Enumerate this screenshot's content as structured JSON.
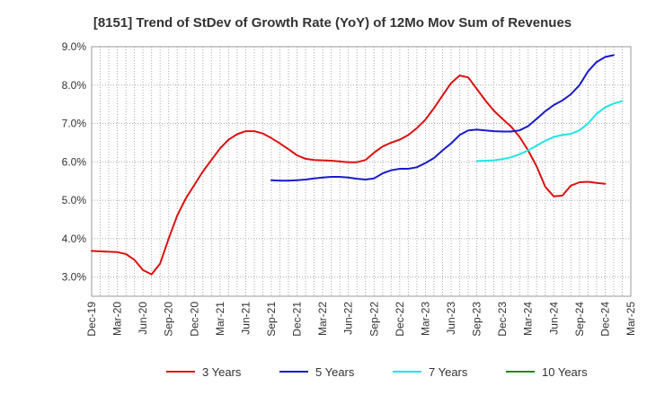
{
  "chart_data": {
    "type": "line",
    "title": "[8151]  Trend of StDev of Growth Rate (YoY) of 12Mo Mov Sum of Revenues",
    "xlabel": "",
    "ylabel": "",
    "ylim": [
      2.5,
      9.0
    ],
    "yticks": [
      3.0,
      4.0,
      5.0,
      6.0,
      7.0,
      8.0,
      9.0
    ],
    "ytick_labels": [
      "3.0%",
      "4.0%",
      "5.0%",
      "6.0%",
      "7.0%",
      "8.0%",
      "9.0%"
    ],
    "xtick_labels": [
      "Dec-19",
      "Mar-20",
      "Jun-20",
      "Sep-20",
      "Dec-20",
      "Mar-21",
      "Jun-21",
      "Sep-21",
      "Dec-21",
      "Mar-22",
      "Jun-22",
      "Sep-22",
      "Dec-22",
      "Mar-23",
      "Jun-23",
      "Sep-23",
      "Dec-23",
      "Mar-24",
      "Jun-24",
      "Sep-24",
      "Dec-24",
      "Mar-25"
    ],
    "grid": true,
    "legend_position": "bottom",
    "series": [
      {
        "name": "3 Years",
        "color": "#dd1111",
        "start_index": 0,
        "values": [
          3.68,
          3.67,
          3.66,
          3.65,
          3.6,
          3.45,
          3.18,
          3.07,
          3.35,
          4.0,
          4.6,
          5.05,
          5.4,
          5.75,
          6.05,
          6.35,
          6.58,
          6.72,
          6.8,
          6.8,
          6.74,
          6.62,
          6.48,
          6.33,
          6.17,
          6.08,
          6.05,
          6.04,
          6.03,
          6.01,
          5.99,
          5.99,
          6.05,
          6.24,
          6.4,
          6.5,
          6.58,
          6.7,
          6.88,
          7.1,
          7.4,
          7.73,
          8.05,
          8.25,
          8.2,
          7.9,
          7.6,
          7.33,
          7.12,
          6.92,
          6.65,
          6.3,
          5.88,
          5.35,
          5.1,
          5.12,
          5.38,
          5.47,
          5.48,
          5.45,
          5.43
        ]
      },
      {
        "name": "5 Years",
        "color": "#1a1acc",
        "start_index": 21,
        "values": [
          5.52,
          5.51,
          5.51,
          5.52,
          5.54,
          5.57,
          5.59,
          5.61,
          5.61,
          5.59,
          5.56,
          5.54,
          5.57,
          5.7,
          5.78,
          5.82,
          5.82,
          5.86,
          5.97,
          6.1,
          6.3,
          6.48,
          6.7,
          6.82,
          6.84,
          6.82,
          6.8,
          6.79,
          6.79,
          6.82,
          6.93,
          7.12,
          7.32,
          7.48,
          7.6,
          7.76,
          8.0,
          8.36,
          8.6,
          8.73,
          8.78
        ]
      },
      {
        "name": "7 Years",
        "color": "#22e5e5",
        "start_index": 45,
        "values": [
          6.02,
          6.03,
          6.04,
          6.07,
          6.12,
          6.2,
          6.3,
          6.42,
          6.55,
          6.65,
          6.7,
          6.73,
          6.82,
          7.0,
          7.25,
          7.42,
          7.52,
          7.58
        ]
      },
      {
        "name": "10 Years",
        "color": "#228b22",
        "start_index": 0,
        "values": []
      }
    ]
  }
}
